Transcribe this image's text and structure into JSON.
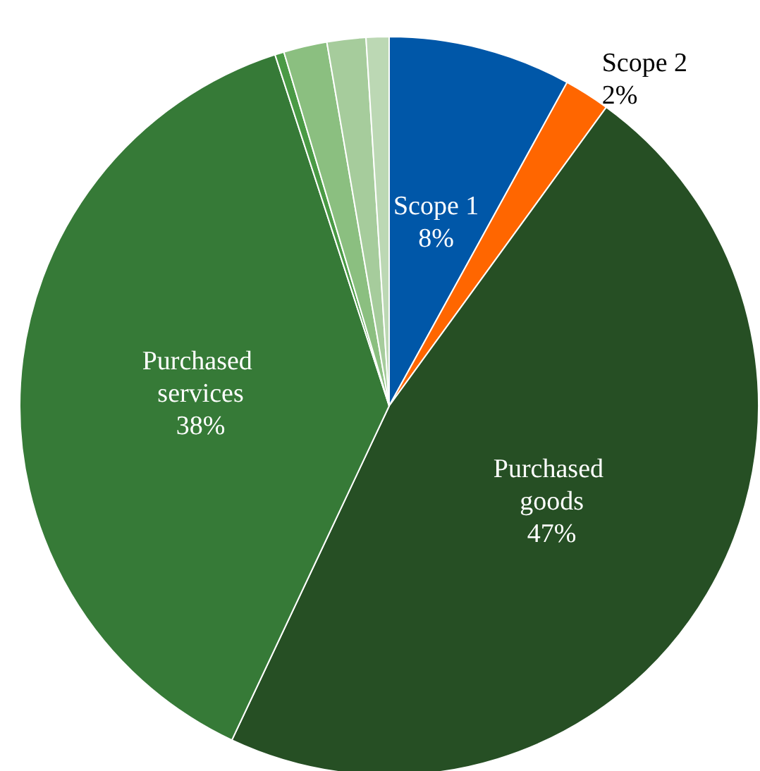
{
  "chart_data": {
    "type": "pie",
    "categories": [
      "Scope 1",
      "Scope 2",
      "Purchased goods",
      "Purchased services",
      null,
      null,
      null,
      null
    ],
    "values": [
      8,
      2,
      47,
      38,
      0.4,
      1.9,
      1.7,
      1.0
    ],
    "colors": [
      "#0057a8",
      "#ff6600",
      "#264f24",
      "#367a37",
      "#4a9a45",
      "#8bbf80",
      "#a6cc9c",
      "#bcd8b4"
    ],
    "value_labels": [
      "8%",
      "2%",
      "47%",
      "38%",
      null,
      null,
      null,
      null
    ]
  }
}
